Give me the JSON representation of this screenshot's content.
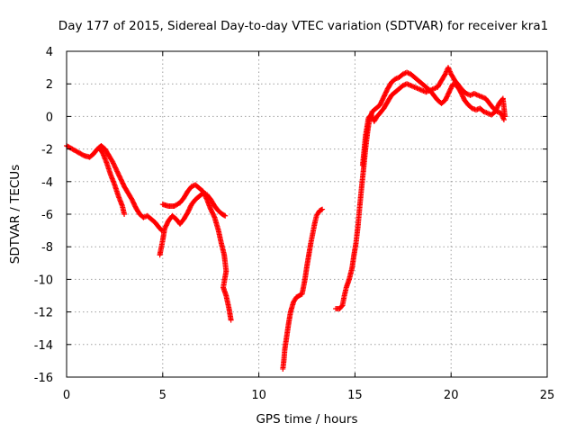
{
  "chart_data": {
    "type": "scatter",
    "title": "Day 177 of 2015, Sidereal Day-to-day VTEC variation (SDTVAR) for receiver kra1",
    "xlabel": "GPS time / hours",
    "ylabel": "SDTVAR / TECUs",
    "xlim": [
      0,
      25
    ],
    "ylim": [
      -16,
      4
    ],
    "xticks": [
      "0",
      "5",
      "10",
      "15",
      "20",
      "25"
    ],
    "yticks": [
      "4",
      "2",
      "0",
      "-2",
      "-4",
      "-6",
      "-8",
      "-10",
      "-12",
      "-14",
      "-16"
    ],
    "grid": true,
    "marker": "+",
    "color": "#ff0000",
    "series": [
      {
        "points": [
          [
            0.0,
            -1.8
          ],
          [
            0.3,
            -2.0
          ],
          [
            0.6,
            -2.2
          ],
          [
            0.9,
            -2.4
          ],
          [
            1.2,
            -2.5
          ],
          [
            1.4,
            -2.3
          ],
          [
            1.6,
            -2.0
          ],
          [
            1.8,
            -1.8
          ],
          [
            2.0,
            -2.0
          ],
          [
            2.2,
            -2.4
          ],
          [
            2.4,
            -2.8
          ],
          [
            2.6,
            -3.3
          ],
          [
            2.8,
            -3.8
          ],
          [
            3.0,
            -4.3
          ],
          [
            3.2,
            -4.7
          ],
          [
            3.4,
            -5.1
          ],
          [
            3.6,
            -5.6
          ],
          [
            3.8,
            -6.0
          ],
          [
            4.0,
            -6.2
          ],
          [
            4.2,
            -6.1
          ],
          [
            4.4,
            -6.3
          ],
          [
            4.6,
            -6.5
          ],
          [
            4.8,
            -6.8
          ],
          [
            4.95,
            -7.0
          ]
        ]
      },
      {
        "points": [
          [
            1.7,
            -1.9
          ],
          [
            1.9,
            -2.3
          ],
          [
            2.1,
            -2.9
          ],
          [
            2.3,
            -3.6
          ],
          [
            2.5,
            -4.2
          ],
          [
            2.7,
            -4.9
          ],
          [
            2.9,
            -5.5
          ],
          [
            3.0,
            -6.0
          ]
        ]
      },
      {
        "points": [
          [
            4.85,
            -8.5
          ],
          [
            4.9,
            -8.2
          ],
          [
            5.0,
            -7.6
          ],
          [
            5.1,
            -6.9
          ],
          [
            5.3,
            -6.4
          ],
          [
            5.5,
            -6.1
          ],
          [
            5.7,
            -6.3
          ],
          [
            5.9,
            -6.6
          ],
          [
            6.1,
            -6.3
          ],
          [
            6.3,
            -5.9
          ],
          [
            6.5,
            -5.4
          ],
          [
            6.7,
            -5.1
          ],
          [
            6.9,
            -4.9
          ],
          [
            7.1,
            -4.7
          ],
          [
            7.3,
            -4.8
          ],
          [
            7.5,
            -5.1
          ],
          [
            7.7,
            -5.5
          ],
          [
            7.9,
            -5.8
          ],
          [
            8.1,
            -6.0
          ],
          [
            8.25,
            -6.1
          ]
        ]
      },
      {
        "points": [
          [
            5.0,
            -5.4
          ],
          [
            5.3,
            -5.5
          ],
          [
            5.6,
            -5.5
          ],
          [
            5.9,
            -5.3
          ],
          [
            6.1,
            -5.0
          ],
          [
            6.3,
            -4.6
          ],
          [
            6.5,
            -4.3
          ],
          [
            6.7,
            -4.2
          ],
          [
            6.9,
            -4.4
          ],
          [
            7.1,
            -4.6
          ],
          [
            7.3,
            -5.1
          ],
          [
            7.5,
            -5.7
          ],
          [
            7.7,
            -6.2
          ],
          [
            7.9,
            -7.0
          ],
          [
            8.05,
            -7.8
          ],
          [
            8.2,
            -8.5
          ],
          [
            8.3,
            -9.5
          ],
          [
            8.15,
            -10.5
          ],
          [
            8.3,
            -11.0
          ],
          [
            8.45,
            -11.8
          ],
          [
            8.55,
            -12.5
          ]
        ]
      },
      {
        "points": [
          [
            11.25,
            -15.5
          ],
          [
            11.3,
            -15.0
          ],
          [
            11.35,
            -14.3
          ],
          [
            11.45,
            -13.5
          ],
          [
            11.55,
            -12.7
          ],
          [
            11.65,
            -12.0
          ],
          [
            11.8,
            -11.4
          ],
          [
            11.95,
            -11.1
          ],
          [
            12.1,
            -11.0
          ],
          [
            12.25,
            -10.9
          ],
          [
            12.4,
            -10.0
          ],
          [
            12.5,
            -9.2
          ],
          [
            12.6,
            -8.5
          ],
          [
            12.7,
            -7.8
          ],
          [
            12.8,
            -7.2
          ],
          [
            12.9,
            -6.6
          ],
          [
            13.0,
            -6.1
          ],
          [
            13.15,
            -5.8
          ],
          [
            13.3,
            -5.7
          ]
        ]
      },
      {
        "points": [
          [
            14.0,
            -11.8
          ],
          [
            14.2,
            -11.8
          ],
          [
            14.35,
            -11.6
          ],
          [
            14.45,
            -11.0
          ],
          [
            14.55,
            -10.5
          ],
          [
            14.7,
            -10.0
          ],
          [
            14.85,
            -9.3
          ],
          [
            14.95,
            -8.5
          ],
          [
            15.05,
            -7.8
          ],
          [
            15.15,
            -6.8
          ],
          [
            15.25,
            -5.5
          ],
          [
            15.35,
            -4.3
          ],
          [
            15.45,
            -3.2
          ],
          [
            15.55,
            -2.0
          ],
          [
            15.65,
            -1.0
          ],
          [
            15.75,
            -0.2
          ],
          [
            15.9,
            0.3
          ],
          [
            16.1,
            0.5
          ],
          [
            16.3,
            0.7
          ],
          [
            16.5,
            1.2
          ],
          [
            16.7,
            1.7
          ],
          [
            16.9,
            2.1
          ],
          [
            17.1,
            2.3
          ],
          [
            17.3,
            2.4
          ],
          [
            17.5,
            2.6
          ],
          [
            17.7,
            2.7
          ],
          [
            17.9,
            2.6
          ],
          [
            18.1,
            2.4
          ],
          [
            18.3,
            2.2
          ],
          [
            18.5,
            2.0
          ],
          [
            18.7,
            1.8
          ],
          [
            18.9,
            1.6
          ],
          [
            19.1,
            1.3
          ],
          [
            19.3,
            1.0
          ],
          [
            19.5,
            0.8
          ],
          [
            19.7,
            1.0
          ],
          [
            19.9,
            1.5
          ],
          [
            20.1,
            2.0
          ],
          [
            20.3,
            1.9
          ],
          [
            20.5,
            1.5
          ],
          [
            20.7,
            1.0
          ],
          [
            20.9,
            0.7
          ],
          [
            21.1,
            0.5
          ],
          [
            21.3,
            0.4
          ],
          [
            21.5,
            0.5
          ],
          [
            21.7,
            0.3
          ],
          [
            21.9,
            0.2
          ],
          [
            22.1,
            0.1
          ],
          [
            22.3,
            0.3
          ],
          [
            22.5,
            0.8
          ],
          [
            22.7,
            1.1
          ],
          [
            22.8,
            0.0
          ]
        ]
      },
      {
        "points": [
          [
            15.4,
            -3.0
          ],
          [
            15.55,
            -1.2
          ],
          [
            15.7,
            -0.1
          ],
          [
            15.85,
            0.1
          ],
          [
            16.0,
            -0.3
          ],
          [
            16.15,
            0.0
          ],
          [
            16.3,
            0.2
          ],
          [
            16.5,
            0.5
          ],
          [
            16.7,
            0.9
          ],
          [
            16.9,
            1.3
          ],
          [
            17.1,
            1.5
          ],
          [
            17.3,
            1.7
          ],
          [
            17.5,
            1.9
          ],
          [
            17.7,
            2.0
          ],
          [
            17.9,
            1.9
          ],
          [
            18.1,
            1.8
          ],
          [
            18.3,
            1.7
          ],
          [
            18.5,
            1.6
          ],
          [
            18.7,
            1.5
          ],
          [
            18.9,
            1.6
          ],
          [
            19.1,
            1.7
          ],
          [
            19.3,
            1.8
          ],
          [
            19.5,
            2.2
          ],
          [
            19.7,
            2.6
          ],
          [
            19.85,
            3.0
          ],
          [
            20.0,
            2.6
          ],
          [
            20.2,
            2.2
          ],
          [
            20.4,
            1.9
          ],
          [
            20.6,
            1.6
          ],
          [
            20.8,
            1.4
          ],
          [
            21.0,
            1.3
          ],
          [
            21.2,
            1.4
          ],
          [
            21.4,
            1.3
          ],
          [
            21.6,
            1.2
          ],
          [
            21.8,
            1.1
          ],
          [
            22.0,
            0.8
          ],
          [
            22.2,
            0.5
          ],
          [
            22.4,
            0.3
          ],
          [
            22.6,
            0.2
          ],
          [
            22.75,
            -0.2
          ]
        ]
      }
    ]
  }
}
